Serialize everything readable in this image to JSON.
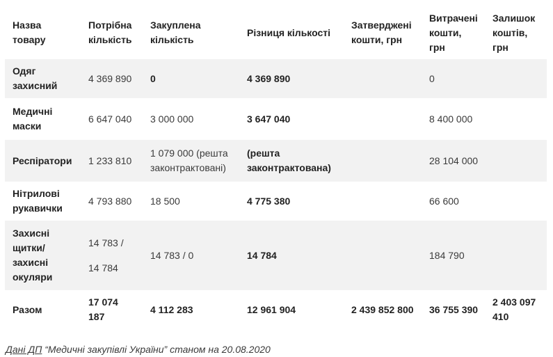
{
  "table": {
    "headers": [
      "Назва товару",
      "Потрібна кількість",
      "Закуплена кількість",
      "Різниця кількості",
      "Затверджені кошти, грн",
      "Витрачені кошти, грн",
      "Залишок коштів, грн"
    ],
    "rows": [
      {
        "name": "Одяг захисний",
        "required": "4 369 890",
        "purchased": "0",
        "difference": "4 369 890",
        "approved": "",
        "spent": "0",
        "remaining": ""
      },
      {
        "name": "Медичні маски",
        "required": "6 647 040",
        "purchased": "3 000 000",
        "difference": "3 647 040",
        "approved": "",
        "spent": "8 400 000",
        "remaining": ""
      },
      {
        "name": "Респіратори",
        "required": "1 233 810",
        "purchased": "1 079 000 (решта законтрактовані)",
        "difference": "(решта законтрактована)",
        "approved": "",
        "spent": "28 104 000",
        "remaining": ""
      },
      {
        "name": "Нітрилові рукавички",
        "required": "4 793 880",
        "purchased": "18 500",
        "difference": "4 775 380",
        "approved": "",
        "spent": "66 600",
        "remaining": ""
      },
      {
        "name": "Захисні щитки/ захисні окуляри",
        "required_line1": "14 783 /",
        "required_line2": "14 784",
        "purchased": "14 783 / 0",
        "difference": "14 784",
        "approved": "",
        "spent": "184 790",
        "remaining": ""
      },
      {
        "name": "Разом",
        "required": "17 074 187",
        "purchased": "4 112 283",
        "difference": "12 961 904",
        "approved": "2 439 852 800",
        "spent": "36 755 390",
        "remaining": "2 403 097 410"
      }
    ]
  },
  "source": {
    "link_text": "Дані ДП",
    "rest_text": " “Медичні закупівлі України” станом на 20.08.2020"
  }
}
